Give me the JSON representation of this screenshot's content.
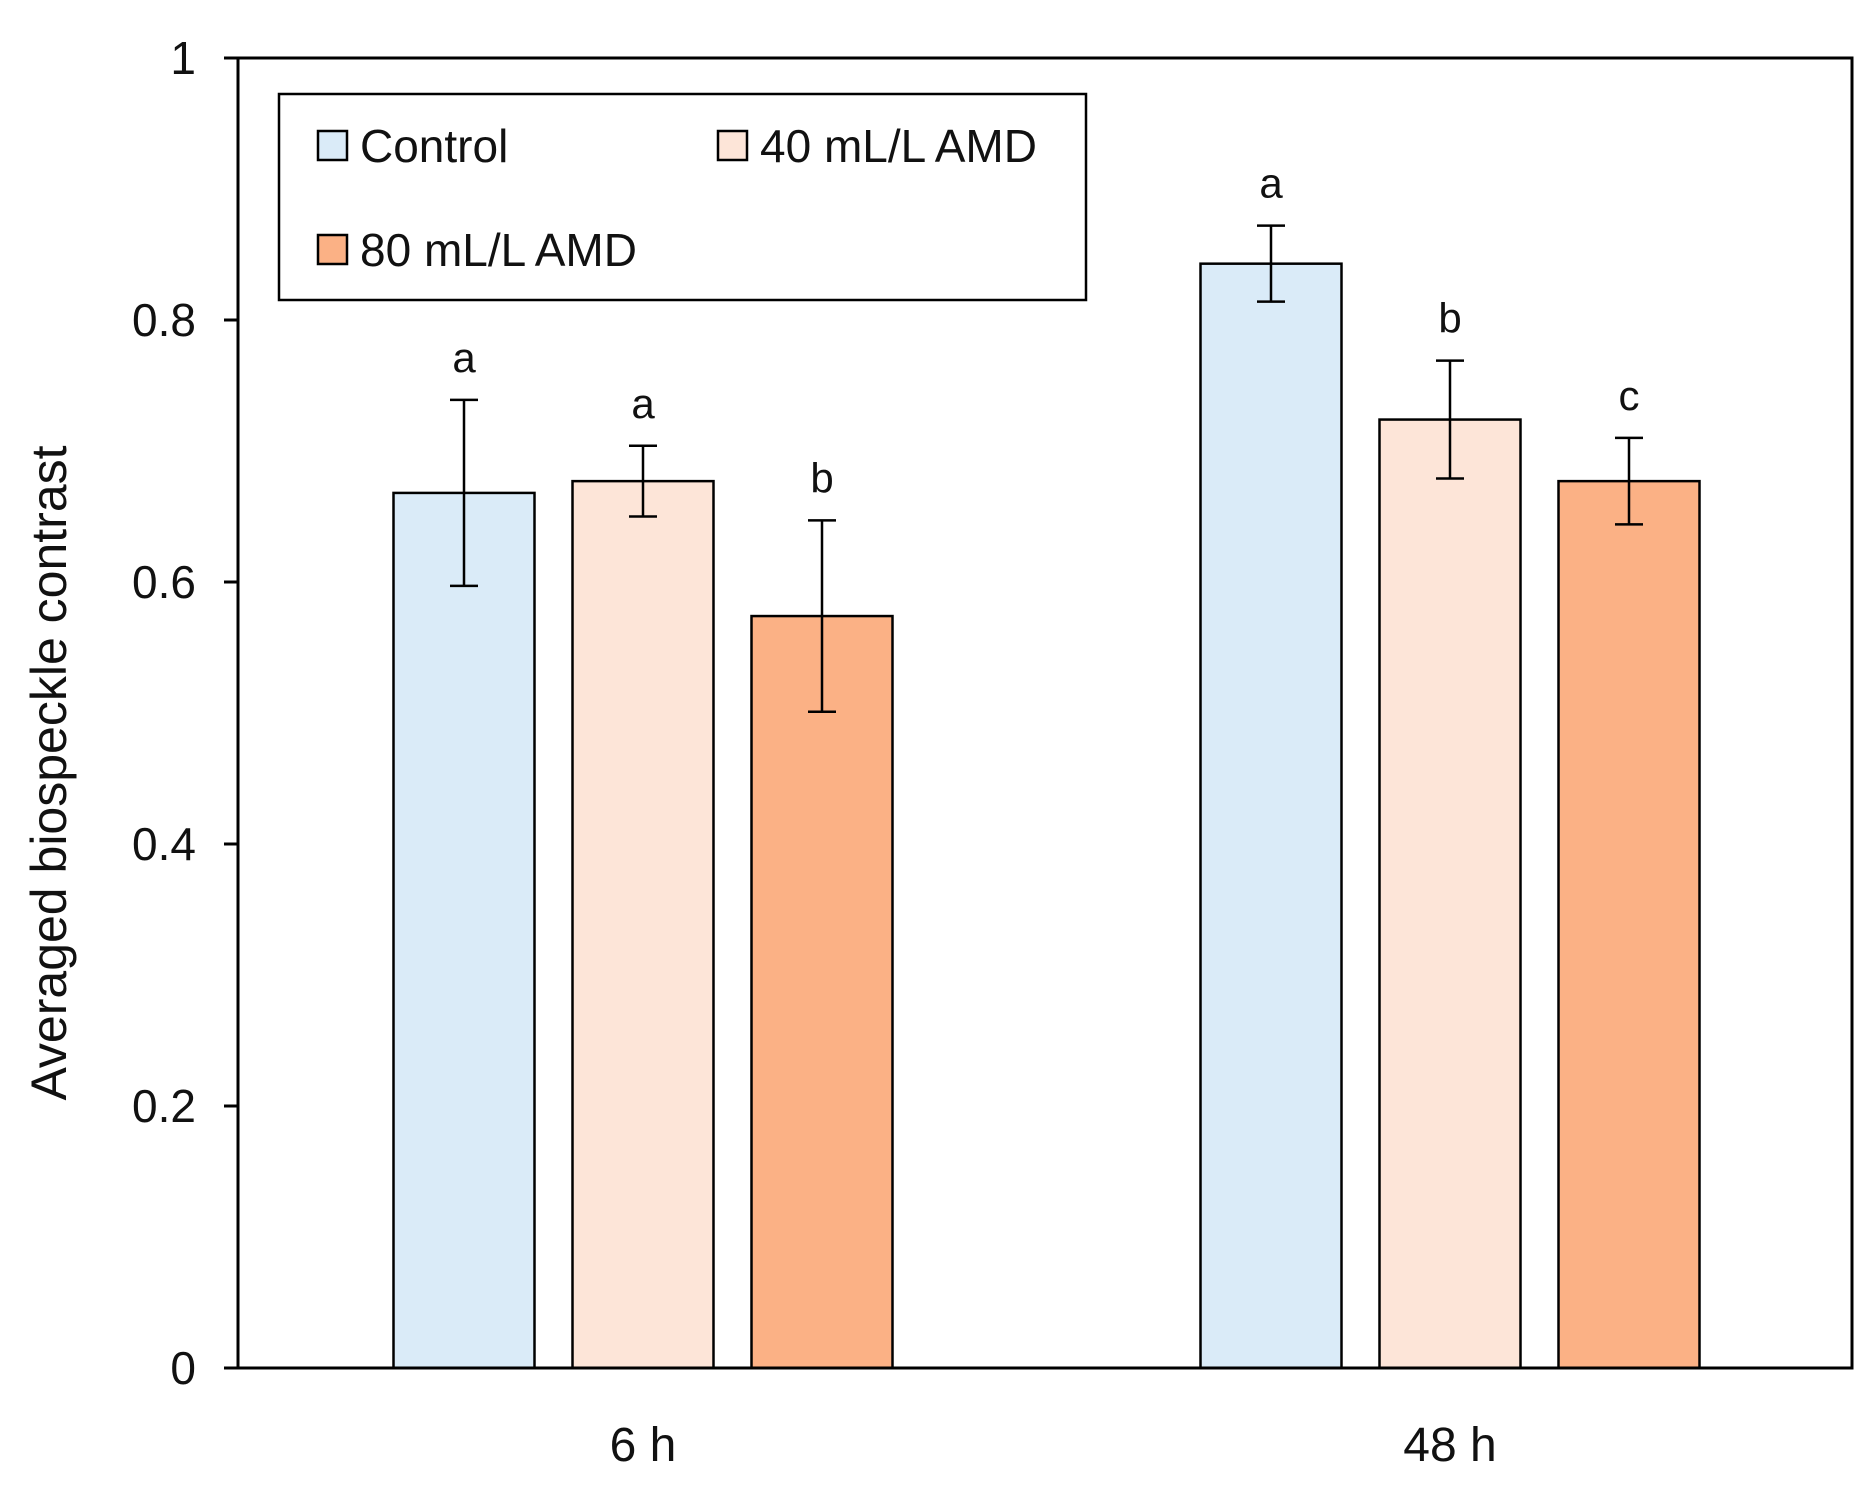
{
  "chart_data": {
    "type": "bar",
    "title": "",
    "xlabel": "",
    "ylabel": "Averaged biospeckle contrast",
    "ylim": [
      0,
      1
    ],
    "yticks": [
      "0",
      "0.2",
      "0.4",
      "0.6",
      "0.8",
      "1"
    ],
    "yticks_values": [
      0,
      0.2,
      0.4,
      0.6,
      0.8,
      1
    ],
    "grid": false,
    "legend_position": "top-left",
    "categories": [
      "6 h",
      "48 h"
    ],
    "series": [
      {
        "name": "Control",
        "color": "#DAEBF8",
        "values": [
          0.668,
          0.843
        ],
        "errors": [
          0.071,
          0.029
        ],
        "letters": [
          "a",
          "a"
        ]
      },
      {
        "name": "40 mL/L AMD",
        "color": "#FDE5D8",
        "values": [
          0.677,
          0.724
        ],
        "errors": [
          0.027,
          0.045
        ],
        "letters": [
          "a",
          "b"
        ]
      },
      {
        "name": "80 mL/L AMD",
        "color": "#FBB185",
        "values": [
          0.574,
          0.677
        ],
        "errors": [
          0.073,
          0.033
        ],
        "letters": [
          "b",
          "c"
        ]
      }
    ]
  }
}
